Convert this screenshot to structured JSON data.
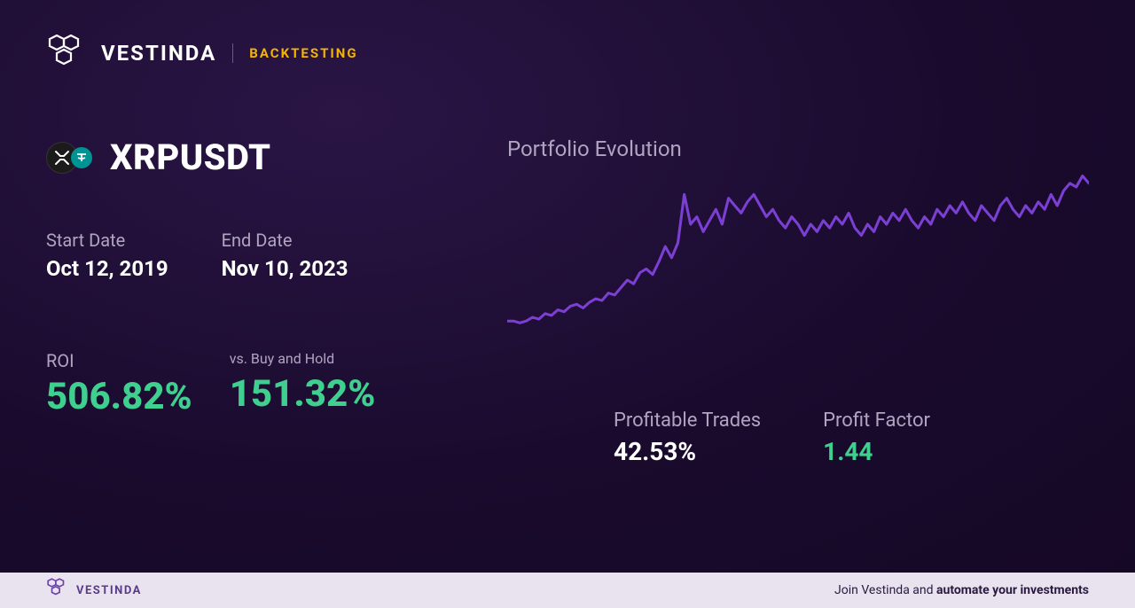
{
  "header": {
    "brand": "VESTINDA",
    "section": "BACKTESTING"
  },
  "pair": {
    "symbol": "XRPUSDT",
    "coin_a_bg": "#1b1b1b",
    "coin_b_bg": "#009393"
  },
  "dates": {
    "start_label": "Start Date",
    "start_value": "Oct 12, 2019",
    "end_label": "End Date",
    "end_value": "Nov 10, 2023"
  },
  "metrics": {
    "roi_label": "ROI",
    "roi_value": "506.82%",
    "bh_label": "vs. Buy and Hold",
    "bh_value": "151.32%"
  },
  "chart": {
    "title": "Portfolio Evolution",
    "type": "line",
    "stroke_color": "#7b3fd4",
    "stroke_width": 3,
    "background": "transparent",
    "xlim": [
      0,
      100
    ],
    "ylim": [
      0,
      100
    ],
    "values": [
      18,
      18,
      17,
      18,
      20,
      19,
      22,
      21,
      24,
      23,
      26,
      27,
      25,
      28,
      30,
      29,
      33,
      32,
      36,
      40,
      38,
      44,
      46,
      43,
      50,
      58,
      52,
      60,
      86,
      70,
      74,
      66,
      72,
      78,
      70,
      84,
      80,
      76,
      82,
      86,
      80,
      74,
      78,
      72,
      68,
      74,
      70,
      64,
      70,
      66,
      72,
      68,
      74,
      70,
      76,
      68,
      64,
      70,
      66,
      74,
      70,
      76,
      72,
      78,
      72,
      68,
      74,
      70,
      78,
      74,
      80,
      76,
      82,
      76,
      72,
      80,
      76,
      72,
      80,
      84,
      78,
      74,
      80,
      76,
      82,
      78,
      86,
      80,
      88,
      92,
      90,
      96,
      92
    ]
  },
  "right_metrics": {
    "pt_label": "Profitable Trades",
    "pt_value": "42.53%",
    "pf_label": "Profit Factor",
    "pf_value": "1.44"
  },
  "footer": {
    "brand": "VESTINDA",
    "cta_prefix": "Join Vestinda and ",
    "cta_bold": "automate your investments"
  },
  "colors": {
    "bg_dark": "#1a0b2e",
    "text_muted": "#b0a5c0",
    "text_white": "#ffffff",
    "accent_green": "#3fcf8e",
    "accent_gold": "#f5b400",
    "accent_purple": "#7b3fd4",
    "footer_bg": "#e8e3ef",
    "footer_text": "#5a3a8a"
  }
}
